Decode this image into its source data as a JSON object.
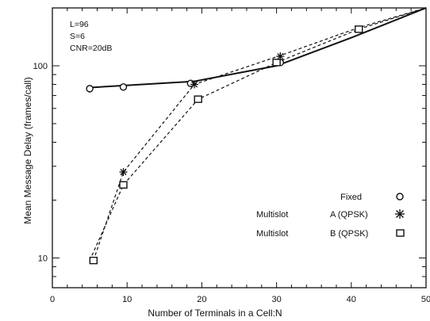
{
  "chart_data": {
    "type": "line",
    "xlabel": "Number of Terminals in a Cell:N",
    "ylabel": "Mean Message Delay (frames/call)",
    "xlim": [
      0,
      50
    ],
    "ylim": [
      7,
      200
    ],
    "yscale": "log",
    "grid": false,
    "legend_position": "right",
    "x_ticks": [
      0,
      10,
      20,
      30,
      40,
      50
    ],
    "x_tick_labels": [
      "0",
      "10",
      "20",
      "30",
      "40",
      "50"
    ],
    "y_tick_labels": [
      {
        "value": 10,
        "label": "10"
      },
      {
        "value": 100,
        "label": "100"
      }
    ],
    "annotations": [
      "L=96",
      "S=6",
      "CNR=20dB"
    ],
    "series": [
      {
        "name_line1": "Fixed",
        "name_line2": "",
        "legend_marker": "circle",
        "fit_line": {
          "style": "solid",
          "x": [
            5,
            19,
            30,
            40,
            50
          ],
          "y": [
            77,
            83,
            100,
            140,
            200
          ]
        },
        "points": {
          "x": [
            5,
            9.5,
            18.5,
            30.5
          ],
          "y": [
            76,
            77.5,
            81,
            104
          ]
        }
      },
      {
        "name_line1": "Multislot",
        "name_line2": "A (QPSK)",
        "legend_marker": "star",
        "fit_line": {
          "style": "dashed",
          "x": [
            5.5,
            9.5,
            19,
            30.5,
            41,
            50
          ],
          "y": [
            9.7,
            28,
            80,
            113,
            158,
            200
          ]
        },
        "points": {
          "x": [
            9.5,
            19,
            30.5
          ],
          "y": [
            28,
            80,
            112
          ]
        }
      },
      {
        "name_line1": "Multislot",
        "name_line2": "B (QPSK)",
        "legend_marker": "square",
        "fit_line": {
          "style": "dashed",
          "x": [
            5,
            9.5,
            19.5,
            30,
            41,
            50
          ],
          "y": [
            9.7,
            24,
            67,
            104,
            155,
            200
          ]
        },
        "points": {
          "x": [
            5.5,
            9.5,
            19.5,
            30,
            41
          ],
          "y": [
            9.7,
            24,
            67,
            104,
            155
          ]
        }
      }
    ]
  }
}
